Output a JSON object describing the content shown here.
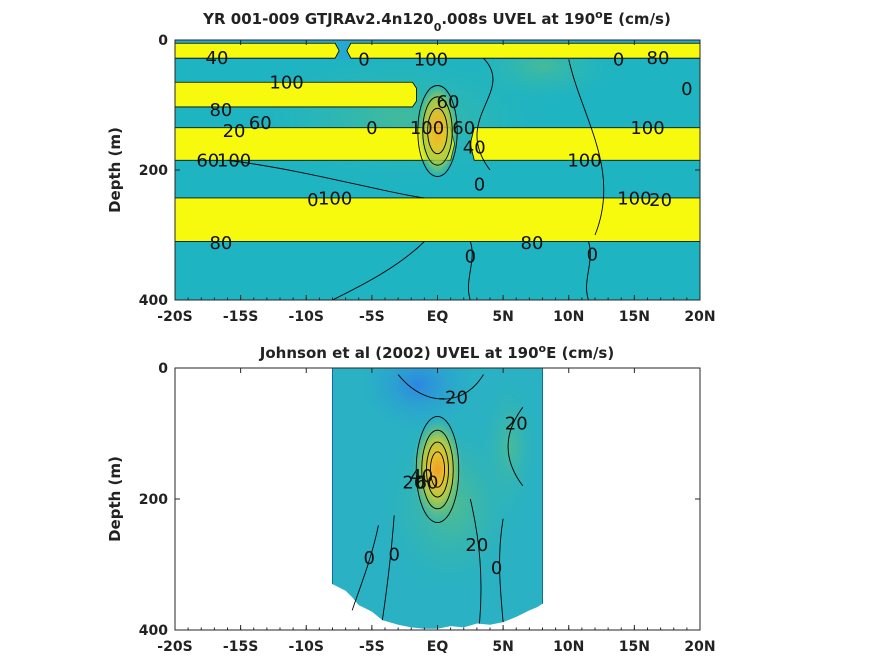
{
  "chart_data": [
    {
      "type": "heatmap",
      "subtype": "filled-contour",
      "title_parts": [
        "YR 001-009 GTJRAv2.4n120",
        "0",
        ".008s UVEL at 190",
        "o",
        "E (cm/s)"
      ],
      "xlabel": "",
      "ylabel": "Depth (m)",
      "xlim": [
        -20,
        20
      ],
      "ylim": [
        0,
        400
      ],
      "y_reversed": true,
      "x_ticks": [
        -20,
        -15,
        -10,
        -5,
        0,
        5,
        10,
        15,
        20
      ],
      "x_tick_labels": [
        "-20S",
        "-15S",
        "-10S",
        "-5S",
        "EQ",
        "5N",
        "10N",
        "15N",
        "20N"
      ],
      "y_ticks": [
        0,
        200,
        400
      ],
      "y_tick_labels": [
        "0",
        "200",
        "400"
      ],
      "background_color": "#1fb4c2",
      "bands": [
        {
          "depth_range": [
            5,
            28
          ],
          "color": "#f8fa0e",
          "gap_lat_range": [
            -7.8,
            -6.6
          ]
        },
        {
          "depth_range": [
            65,
            103
          ],
          "color": "#f8fa0e",
          "lat_range": [
            -20,
            -1.6
          ]
        },
        {
          "depth_range": [
            135,
            185
          ],
          "color": "#f8fa0e",
          "gap_lat_range": [
            1.0,
            2.8
          ]
        },
        {
          "depth_range": [
            243,
            310
          ],
          "color": "#f8fa0e"
        }
      ],
      "core": {
        "center_lat": 0,
        "center_depth": 140,
        "half_width_deg": 1.5,
        "half_depth": 70,
        "max_value": 80
      },
      "contour_labels": [
        {
          "text": "40",
          "lat": -16.8,
          "depth": 28
        },
        {
          "text": "0",
          "lat": -5.6,
          "depth": 30
        },
        {
          "text": "100",
          "lat": -0.5,
          "depth": 30
        },
        {
          "text": "0",
          "lat": 13.8,
          "depth": 30
        },
        {
          "text": "80",
          "lat": 16.8,
          "depth": 28
        },
        {
          "text": "100",
          "lat": -11.5,
          "depth": 65
        },
        {
          "text": "0",
          "lat": 19,
          "depth": 75
        },
        {
          "text": "60",
          "lat": 0.8,
          "depth": 95
        },
        {
          "text": "80",
          "lat": -16.5,
          "depth": 108
        },
        {
          "text": "20",
          "lat": -15.5,
          "depth": 140
        },
        {
          "text": "60",
          "lat": -13.5,
          "depth": 128
        },
        {
          "text": "0",
          "lat": -5,
          "depth": 135
        },
        {
          "text": "100",
          "lat": -0.8,
          "depth": 135
        },
        {
          "text": "60",
          "lat": 2,
          "depth": 135
        },
        {
          "text": "40",
          "lat": 2.8,
          "depth": 165
        },
        {
          "text": "100",
          "lat": 16,
          "depth": 135
        },
        {
          "text": "60",
          "lat": -17.5,
          "depth": 185
        },
        {
          "text": "100",
          "lat": -15.5,
          "depth": 185
        },
        {
          "text": "100",
          "lat": 11.2,
          "depth": 185
        },
        {
          "text": "0",
          "lat": -9.5,
          "depth": 246
        },
        {
          "text": "100",
          "lat": -7.8,
          "depth": 244
        },
        {
          "text": "0",
          "lat": 3.2,
          "depth": 222
        },
        {
          "text": "100",
          "lat": 15,
          "depth": 244
        },
        {
          "text": "20",
          "lat": 17,
          "depth": 246
        },
        {
          "text": "80",
          "lat": -16.5,
          "depth": 312
        },
        {
          "text": "80",
          "lat": 7.2,
          "depth": 312
        },
        {
          "text": "0",
          "lat": 2.5,
          "depth": 333
        },
        {
          "text": "0",
          "lat": 11.8,
          "depth": 330
        }
      ]
    },
    {
      "type": "heatmap",
      "subtype": "filled-contour",
      "title_parts": [
        "Johnson et al (2002) UVEL at 190",
        "o",
        "E (cm/s)"
      ],
      "xlabel": "",
      "ylabel": "Depth (m)",
      "xlim": [
        -20,
        20
      ],
      "ylim": [
        0,
        400
      ],
      "y_reversed": true,
      "x_ticks": [
        -20,
        -15,
        -10,
        -5,
        0,
        5,
        10,
        15,
        20
      ],
      "x_tick_labels": [
        "-20S",
        "-15S",
        "-10S",
        "-5S",
        "EQ",
        "5N",
        "10N",
        "15N",
        "20N"
      ],
      "y_ticks": [
        0,
        200,
        400
      ],
      "y_tick_labels": [
        "0",
        "200",
        "400"
      ],
      "data_lat_range": [
        -8,
        8
      ],
      "background_color": "#2ab1c4",
      "surface_current": {
        "lat_range": [
          -5,
          2
        ],
        "depth_range": [
          0,
          70
        ],
        "value": -20,
        "color": "#2e8ce0"
      },
      "core": {
        "center_lat": 0,
        "center_depth": 155,
        "half_width_deg": 1.2,
        "half_depth": 60,
        "max_value": 80
      },
      "contour_labels": [
        {
          "text": "-20",
          "lat": 1.2,
          "depth": 45
        },
        {
          "text": "20",
          "lat": 6,
          "depth": 85
        },
        {
          "text": "20",
          "lat": -1.8,
          "depth": 175
        },
        {
          "text": "40",
          "lat": -1.2,
          "depth": 165
        },
        {
          "text": "60",
          "lat": -0.8,
          "depth": 175
        },
        {
          "text": "0",
          "lat": -5.2,
          "depth": 290
        },
        {
          "text": "0",
          "lat": -3.3,
          "depth": 285
        },
        {
          "text": "20",
          "lat": 3,
          "depth": 270
        },
        {
          "text": "0",
          "lat": 4.5,
          "depth": 305
        }
      ]
    }
  ]
}
